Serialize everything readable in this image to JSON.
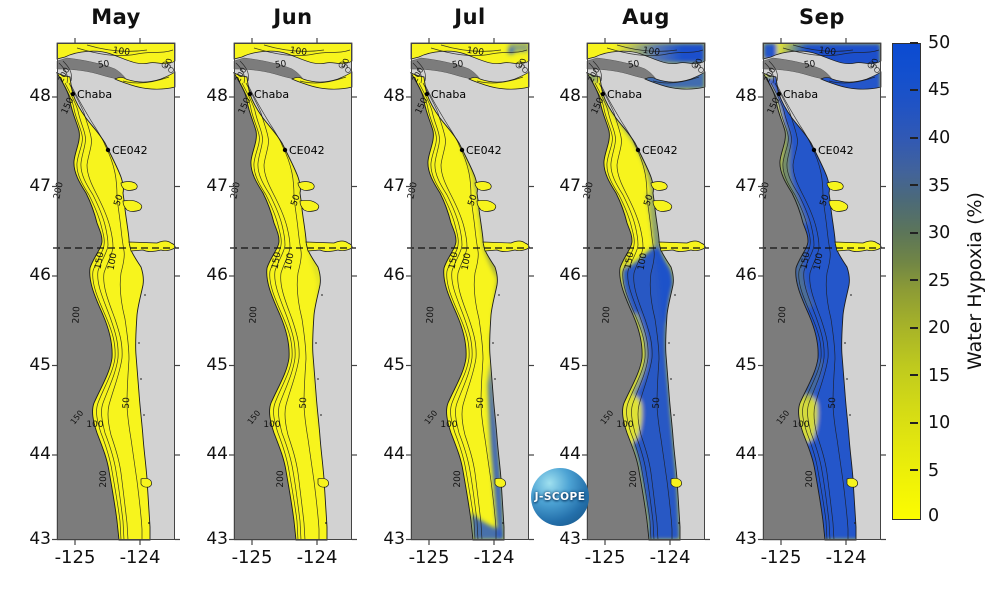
{
  "panels": [
    {
      "title": "May"
    },
    {
      "title": "Jun"
    },
    {
      "title": "Jul"
    },
    {
      "title": "Aug"
    },
    {
      "title": "Sep"
    }
  ],
  "axes": {
    "lat_ticks": [
      "48",
      "47",
      "46",
      "45",
      "44",
      "43"
    ],
    "lon_ticks": [
      "-125",
      "-124"
    ]
  },
  "stations": [
    {
      "name": "Chaba"
    },
    {
      "name": "CE042"
    }
  ],
  "contour_labels": [
    "150",
    "200",
    "50",
    "150",
    "100",
    "200",
    "50",
    "100",
    "150",
    "200",
    "100",
    "50",
    "50",
    "200"
  ],
  "colorbar": {
    "title": "Water Hypoxia (%)",
    "min": 0,
    "max": 50,
    "tick_labels": [
      "50",
      "45",
      "40",
      "35",
      "30",
      "25",
      "20",
      "15",
      "10",
      "5",
      "0"
    ],
    "colors": {
      "low": "#ffff00",
      "mid": "#6d8247",
      "high": "#0b4bd2"
    }
  },
  "logo": {
    "text": "J-SCOPE"
  },
  "map_colors": {
    "land": "#d2d2d2",
    "deep_ocean": "#7c7c7c",
    "shelf_base": "#f7f41d"
  }
}
